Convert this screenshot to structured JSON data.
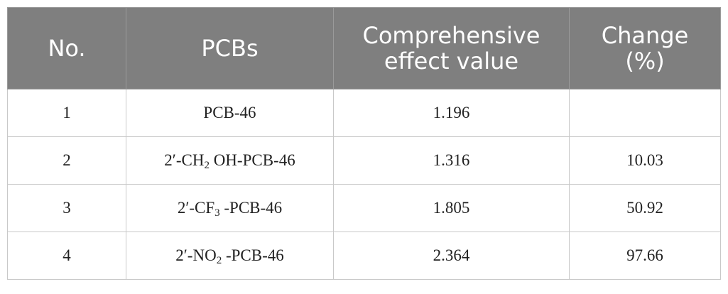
{
  "table": {
    "headers": {
      "no": "No.",
      "pcbs": "PCBs",
      "effect_line1": "Comprehensive",
      "effect_line2": "effect value",
      "change_line1": "Change",
      "change_line2": "(%)"
    },
    "rows": [
      {
        "no": "1",
        "pcb_pre": "PCB-46",
        "pcb_sub": "",
        "pcb_post": "",
        "effect": "1.196",
        "change": ""
      },
      {
        "no": "2",
        "pcb_pre": "2′-CH",
        "pcb_sub": "2",
        "pcb_post": " OH-PCB-46",
        "effect": "1.316",
        "change": "10.03"
      },
      {
        "no": "3",
        "pcb_pre": "2′-CF",
        "pcb_sub": "3",
        "pcb_post": " -PCB-46",
        "effect": "1.805",
        "change": "50.92"
      },
      {
        "no": "4",
        "pcb_pre": "2′-NO",
        "pcb_sub": "2",
        "pcb_post": " -PCB-46",
        "effect": "2.364",
        "change": "97.66"
      }
    ]
  }
}
